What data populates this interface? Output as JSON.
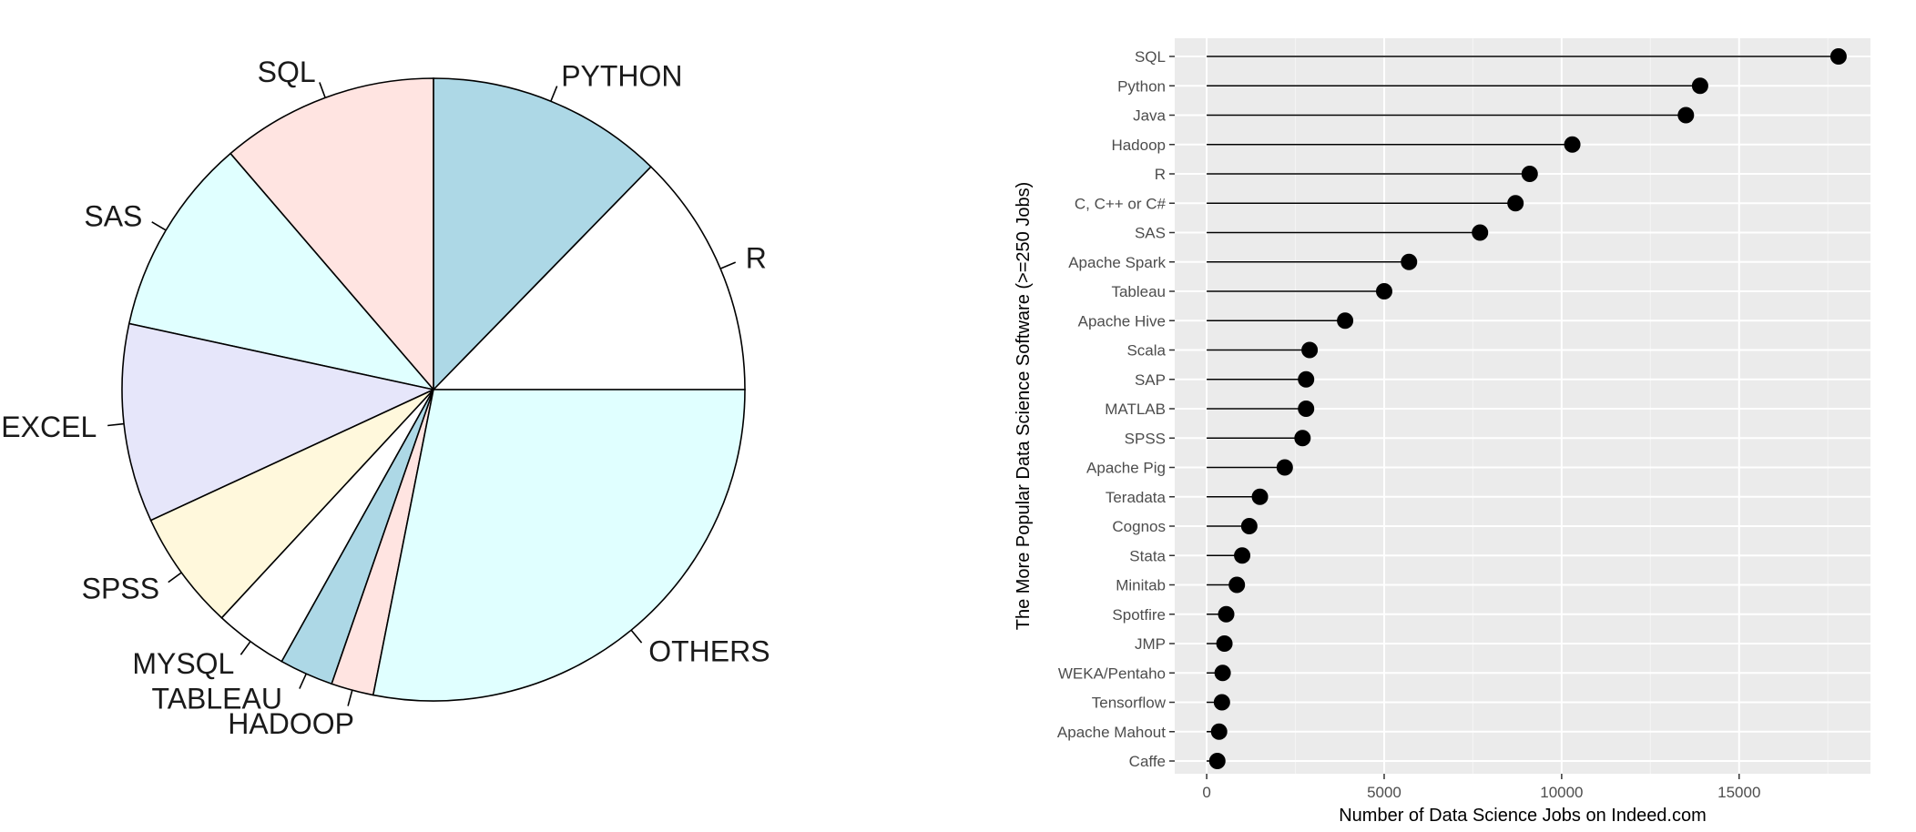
{
  "chart_data": [
    {
      "type": "pie",
      "title": "",
      "slices": [
        {
          "label": "R",
          "value": 12.7,
          "color": "#ffffff"
        },
        {
          "label": "PYTHON",
          "value": 12.3,
          "color": "#add8e6"
        },
        {
          "label": "SQL",
          "value": 11.3,
          "color": "#ffe4e1"
        },
        {
          "label": "SAS",
          "value": 10.3,
          "color": "#e0ffff"
        },
        {
          "label": "EXCEL",
          "value": 10.3,
          "color": "#e6e6fa"
        },
        {
          "label": "SPSS",
          "value": 6.2,
          "color": "#fff8dc"
        },
        {
          "label": "MYSQL",
          "value": 3.8,
          "color": "#ffffff"
        },
        {
          "label": "TABLEAU",
          "value": 2.8,
          "color": "#add8e6"
        },
        {
          "label": "HADOOP",
          "value": 2.2,
          "color": "#ffe4e1"
        },
        {
          "label": "OTHERS",
          "value": 28.1,
          "color": "#e0ffff"
        }
      ]
    },
    {
      "type": "scatter",
      "title": "",
      "xlabel": "Number of Data Science Jobs on Indeed.com",
      "ylabel": "The More Popular Data Science Software (>=250 Jobs)",
      "xlim": [
        -900,
        18700
      ],
      "xticks": [
        0,
        5000,
        10000,
        15000
      ],
      "grid": true,
      "categories": [
        "SQL",
        "Python",
        "Java",
        "Hadoop",
        "R",
        "C, C++ or C#",
        "SAS",
        "Apache Spark",
        "Tableau",
        "Apache Hive",
        "Scala",
        "SAP",
        "MATLAB",
        "SPSS",
        "Apache Pig",
        "Teradata",
        "Cognos",
        "Stata",
        "Minitab",
        "Spotfire",
        "JMP",
        "WEKA/Pentaho",
        "Tensorflow",
        "Apache Mahout",
        "Caffe"
      ],
      "values": [
        17800,
        13900,
        13500,
        10300,
        9100,
        8700,
        7700,
        5700,
        5000,
        3900,
        2900,
        2800,
        2800,
        2700,
        2200,
        1500,
        1200,
        1000,
        850,
        550,
        500,
        450,
        430,
        350,
        300
      ]
    }
  ]
}
